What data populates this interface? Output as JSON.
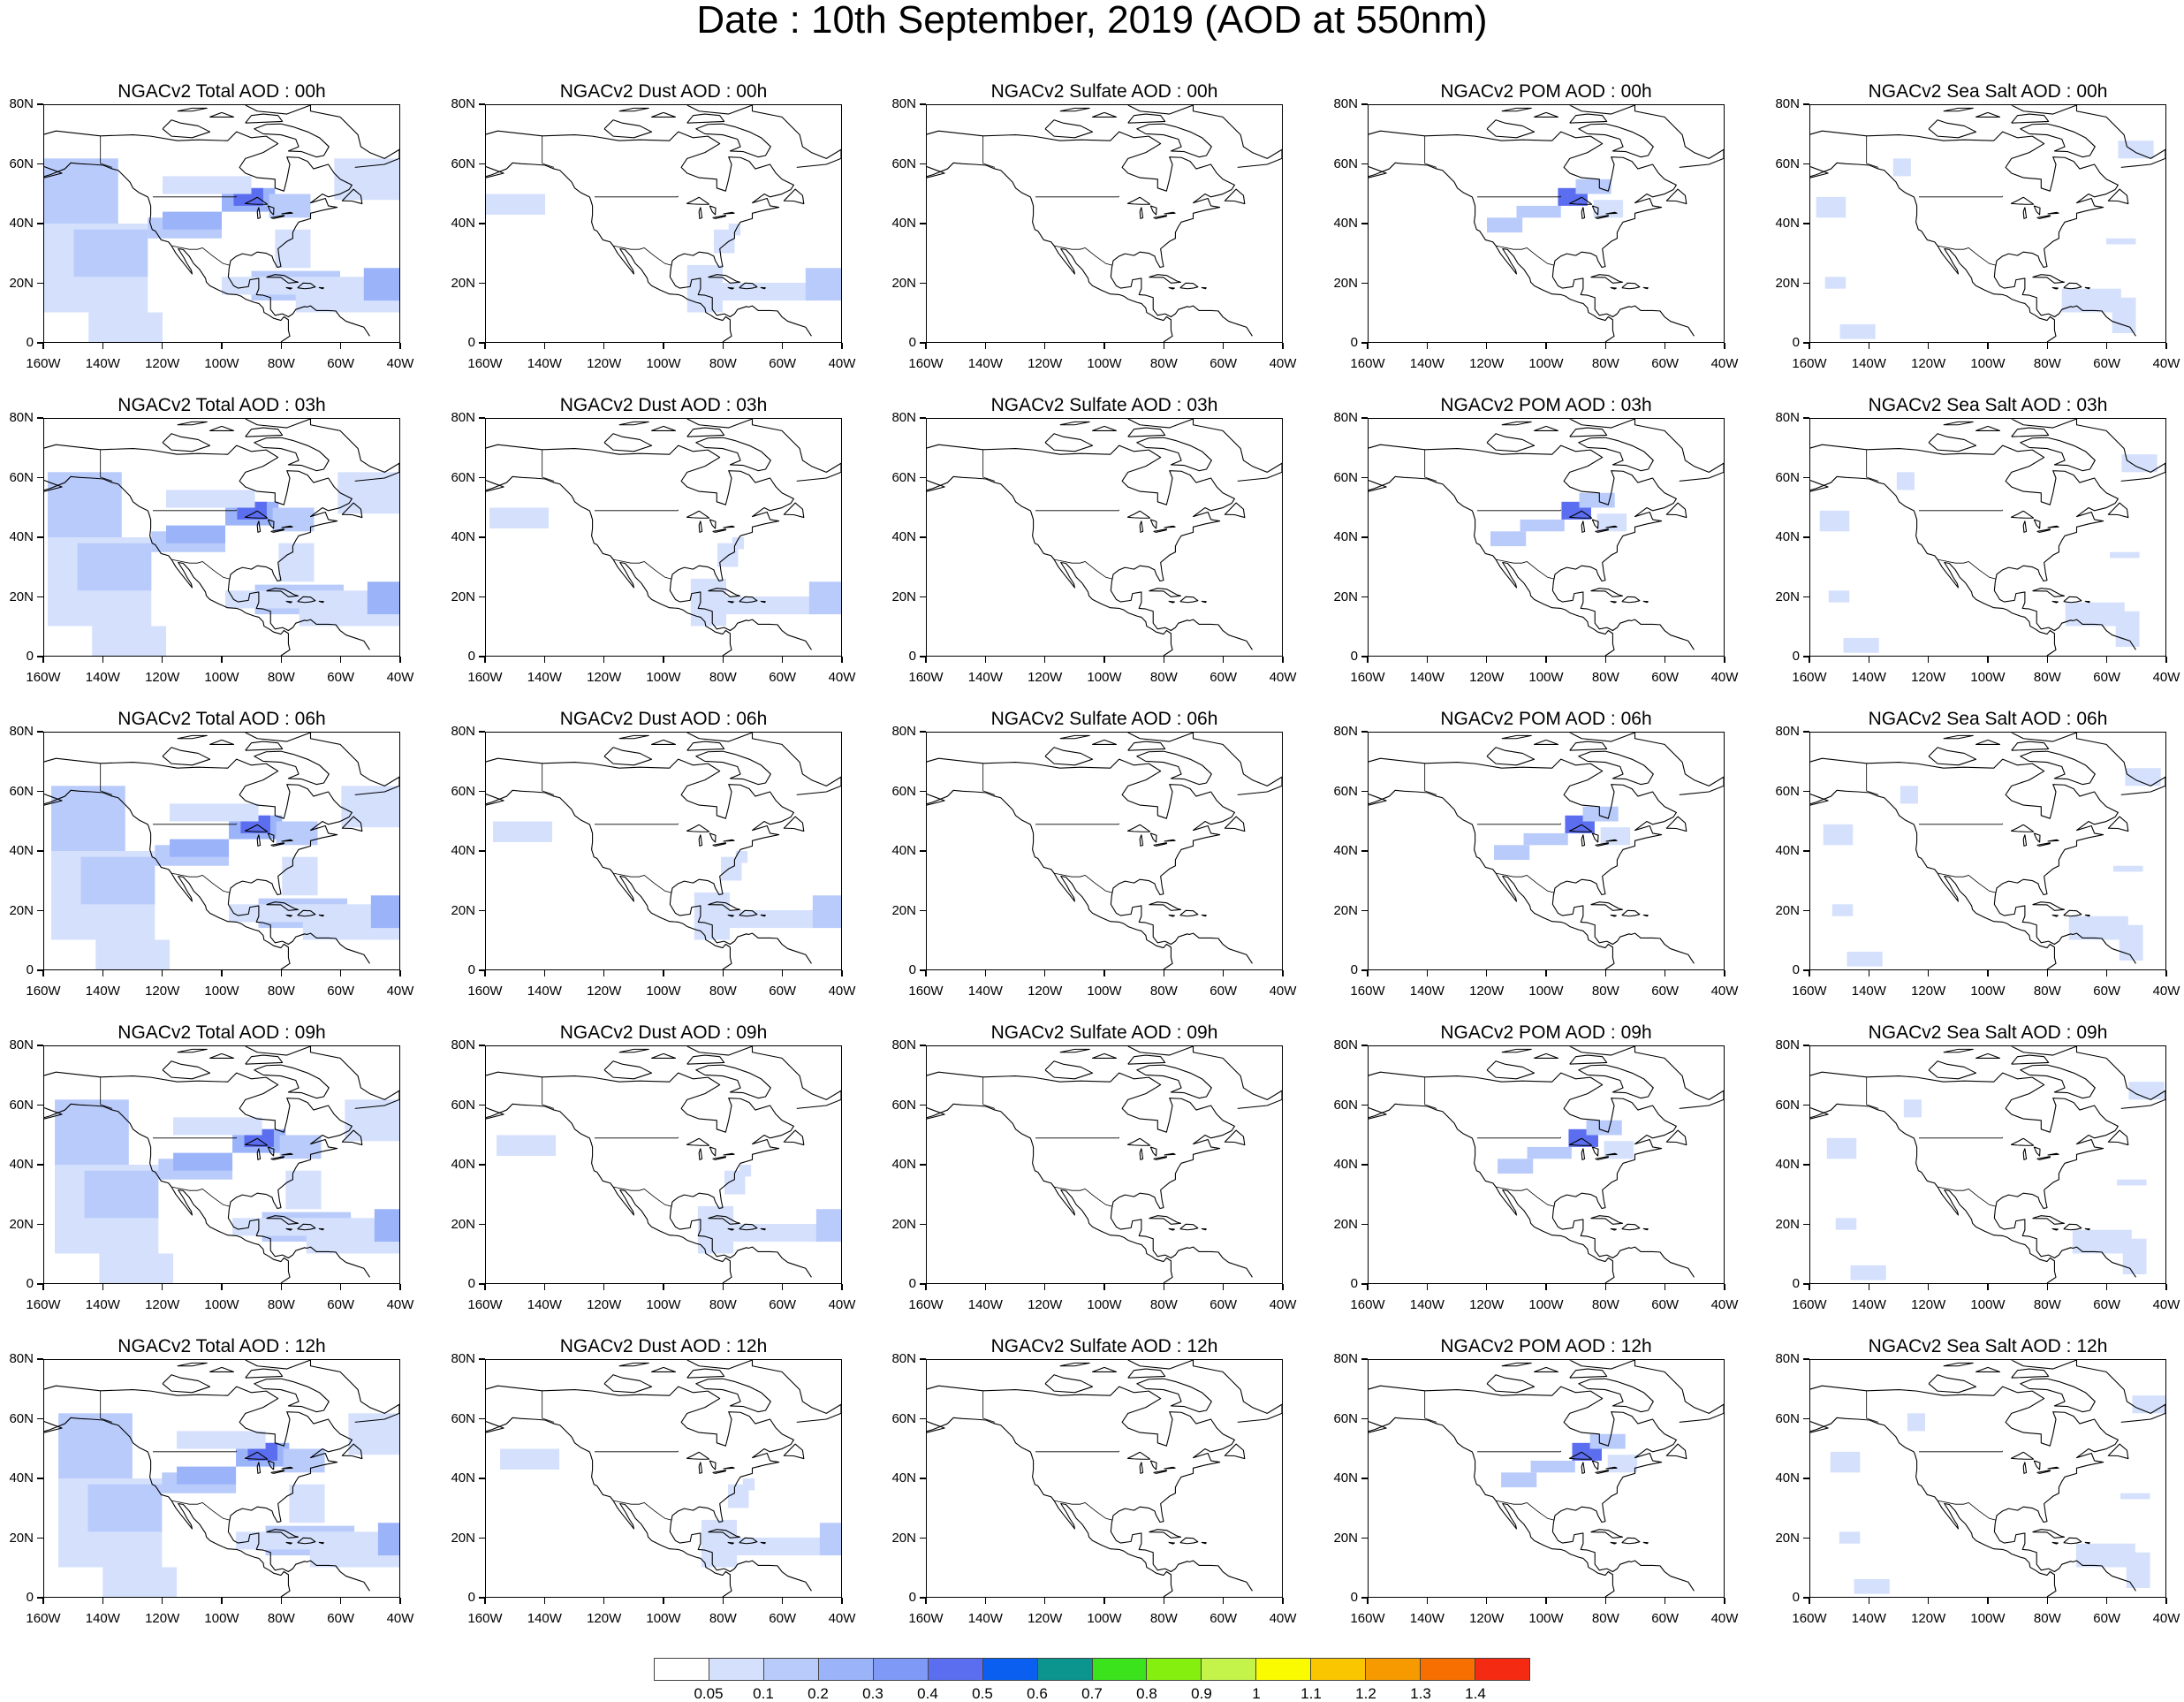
{
  "title": "Date : 10th September, 2019 (AOD at 550nm)",
  "panels": [
    {
      "title": "NGACv2 Total AOD : 00h",
      "species": "total",
      "hour": 0
    },
    {
      "title": "NGACv2 Dust AOD : 00h",
      "species": "dust",
      "hour": 0
    },
    {
      "title": "NGACv2 Sulfate AOD : 00h",
      "species": "sulfate",
      "hour": 0
    },
    {
      "title": "NGACv2 POM AOD : 00h",
      "species": "pom",
      "hour": 0
    },
    {
      "title": "NGACv2 Sea Salt AOD : 00h",
      "species": "seasalt",
      "hour": 0
    },
    {
      "title": "NGACv2 Total AOD : 03h",
      "species": "total",
      "hour": 3
    },
    {
      "title": "NGACv2 Dust AOD : 03h",
      "species": "dust",
      "hour": 3
    },
    {
      "title": "NGACv2 Sulfate AOD : 03h",
      "species": "sulfate",
      "hour": 3
    },
    {
      "title": "NGACv2 POM AOD : 03h",
      "species": "pom",
      "hour": 3
    },
    {
      "title": "NGACv2 Sea Salt AOD : 03h",
      "species": "seasalt",
      "hour": 3
    },
    {
      "title": "NGACv2 Total AOD : 06h",
      "species": "total",
      "hour": 6
    },
    {
      "title": "NGACv2 Dust AOD : 06h",
      "species": "dust",
      "hour": 6
    },
    {
      "title": "NGACv2 Sulfate AOD : 06h",
      "species": "sulfate",
      "hour": 6
    },
    {
      "title": "NGACv2 POM AOD : 06h",
      "species": "pom",
      "hour": 6
    },
    {
      "title": "NGACv2 Sea Salt AOD : 06h",
      "species": "seasalt",
      "hour": 6
    },
    {
      "title": "NGACv2 Total AOD : 09h",
      "species": "total",
      "hour": 9
    },
    {
      "title": "NGACv2 Dust AOD : 09h",
      "species": "dust",
      "hour": 9
    },
    {
      "title": "NGACv2 Sulfate AOD : 09h",
      "species": "sulfate",
      "hour": 9
    },
    {
      "title": "NGACv2 POM AOD : 09h",
      "species": "pom",
      "hour": 9
    },
    {
      "title": "NGACv2 Sea Salt  AOD : 09h",
      "species": "seasalt",
      "hour": 9
    },
    {
      "title": "NGACv2 Total AOD  : 12h",
      "species": "total",
      "hour": 12
    },
    {
      "title": "NGACv2 Dust AOD : 12h",
      "species": "dust",
      "hour": 12
    },
    {
      "title": "NGACv2 Sulfate AOD : 12h",
      "species": "sulfate",
      "hour": 12
    },
    {
      "title": "NGACv2 POM  AOD : 12h",
      "species": "pom",
      "hour": 12
    },
    {
      "title": "NGACv2 Sea Salt  AOD : 12h",
      "species": "seasalt",
      "hour": 12
    }
  ],
  "axes": {
    "lat_labels": [
      "80N",
      "60N",
      "40N",
      "20N",
      "0"
    ],
    "lat_values": [
      80,
      60,
      40,
      20,
      0
    ],
    "lon_labels": [
      "160W",
      "140W",
      "120W",
      "100W",
      "80W",
      "60W",
      "40W"
    ],
    "lon_values": [
      -160,
      -140,
      -120,
      -100,
      -80,
      -60,
      -40
    ],
    "lon_range": [
      -160,
      -40
    ],
    "lat_range": [
      0,
      80
    ]
  },
  "colorbar": {
    "colors": [
      "#ffffff",
      "#d4e0fc",
      "#b9cbfb",
      "#9bb3f9",
      "#7f9af6",
      "#5c6ef0",
      "#0a5ff0",
      "#0c948f",
      "#3ae31b",
      "#85f00f",
      "#c4f34a",
      "#fbfb00",
      "#f9c600",
      "#f69a00",
      "#f66f00",
      "#f52a12"
    ],
    "labels": [
      "0.05",
      "0.1",
      "0.2",
      "0.3",
      "0.4",
      "0.5",
      "0.6",
      "0.7",
      "0.8",
      "0.9",
      "1",
      "1.1",
      "1.2",
      "1.3",
      "1.4"
    ]
  },
  "land_color": "#ffffff",
  "coast_color": "#000000"
}
